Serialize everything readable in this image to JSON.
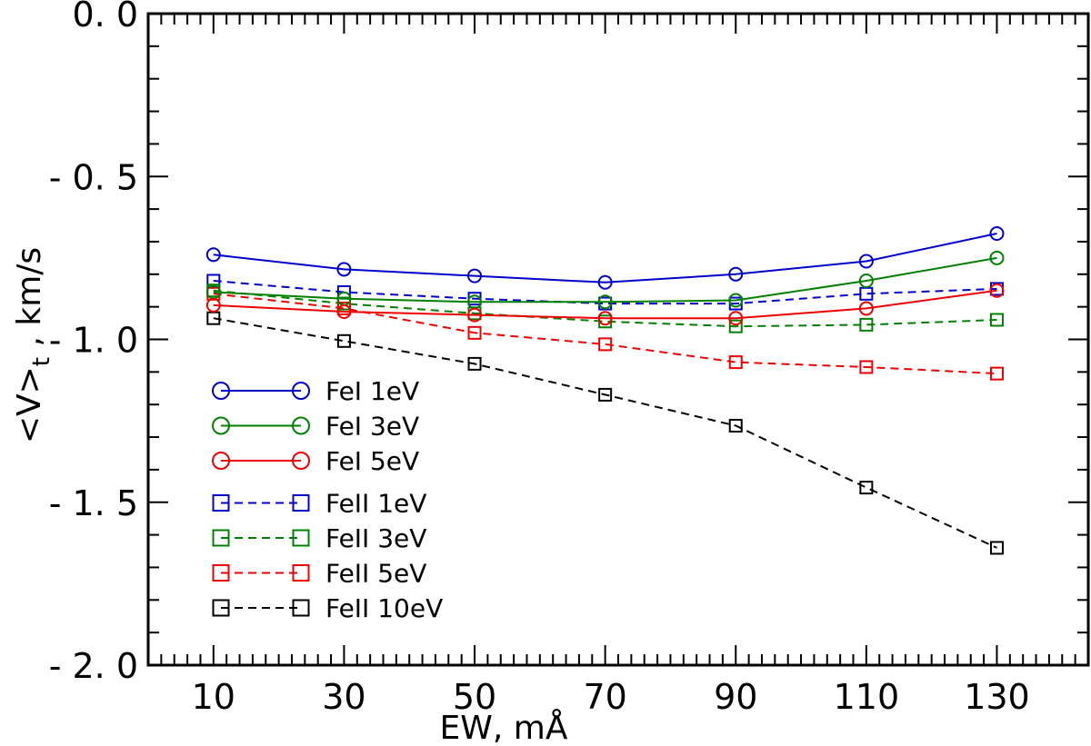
{
  "chart_data": {
    "type": "line",
    "title": "",
    "xlabel": "EW, mÅ",
    "ylabel": "<V>t , km/s",
    "ylabel_main": "<V>",
    "ylabel_sub": "t",
    "ylabel_unit": " , km/s",
    "xlim": [
      0,
      144
    ],
    "ylim": [
      -2.0,
      0.0
    ],
    "xticks": [
      10,
      30,
      50,
      70,
      90,
      110,
      130
    ],
    "xtick_labels": [
      "10",
      "30",
      "50",
      "70",
      "90",
      "110",
      "130"
    ],
    "yticks": [
      0.0,
      -0.5,
      -1.0,
      -1.5,
      -2.0
    ],
    "ytick_labels": [
      "0. 0",
      "- 0. 5",
      "- 1. 0",
      "- 1. 5",
      "- 2. 0"
    ],
    "legend_position": "lower-left",
    "x": [
      10,
      30,
      50,
      70,
      90,
      110,
      130
    ],
    "series": [
      {
        "name": "FeI 1eV",
        "color": "#0000cc",
        "marker": "circle",
        "dash": "solid",
        "values": [
          -0.74,
          -0.785,
          -0.805,
          -0.825,
          -0.8,
          -0.76,
          -0.675
        ]
      },
      {
        "name": "FeI 3eV",
        "color": "#008000",
        "marker": "circle",
        "dash": "solid",
        "values": [
          -0.855,
          -0.875,
          -0.885,
          -0.885,
          -0.88,
          -0.82,
          -0.75
        ]
      },
      {
        "name": "FeI 5eV",
        "color": "#ee0000",
        "marker": "circle",
        "dash": "solid",
        "values": [
          -0.895,
          -0.915,
          -0.925,
          -0.935,
          -0.935,
          -0.905,
          -0.85
        ]
      },
      {
        "name": "FeII 1eV",
        "color": "#0000cc",
        "marker": "square",
        "dash": "dashed",
        "values": [
          -0.82,
          -0.855,
          -0.875,
          -0.89,
          -0.89,
          -0.86,
          -0.845
        ]
      },
      {
        "name": "FeII 3eV",
        "color": "#008000",
        "marker": "square",
        "dash": "dashed",
        "values": [
          -0.85,
          -0.89,
          -0.92,
          -0.945,
          -0.96,
          -0.955,
          -0.94
        ]
      },
      {
        "name": "FeII 5eV",
        "color": "#ee0000",
        "marker": "square",
        "dash": "dashed",
        "values": [
          -0.86,
          -0.905,
          -0.98,
          -1.015,
          -1.07,
          -1.085,
          -1.105
        ]
      },
      {
        "name": "FeII 10eV",
        "color": "#000000",
        "marker": "square",
        "dash": "dashed",
        "values": [
          -0.935,
          -1.005,
          -1.075,
          -1.17,
          -1.265,
          -1.455,
          -1.64
        ]
      }
    ]
  }
}
